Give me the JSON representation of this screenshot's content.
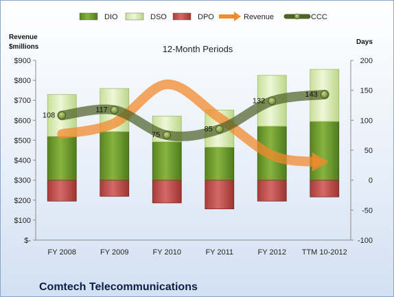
{
  "chart_data": {
    "type": "bar",
    "title": "12-Month Periods",
    "company": "Comtech Telecommunications",
    "categories": [
      "FY 2008",
      "FY 2009",
      "FY 2010",
      "FY 2011",
      "FY 2012",
      "TTM 10-2012"
    ],
    "left_axis": {
      "label_line1": "Revenue",
      "label_line2": "$millions",
      "ylim": [
        0,
        900
      ],
      "ticks": [
        0,
        100,
        200,
        300,
        400,
        500,
        600,
        700,
        800,
        900
      ],
      "tick_labels": [
        "$-",
        "$100",
        "$200",
        "$300",
        "$400",
        "$500",
        "$600",
        "$700",
        "$800",
        "$900"
      ]
    },
    "right_axis": {
      "label": "Days",
      "ylim": [
        -100,
        200
      ],
      "ticks": [
        -100,
        -50,
        0,
        50,
        100,
        150,
        200
      ],
      "tick_labels": [
        "-100",
        "-50",
        "0",
        "50",
        "100",
        "150",
        "200"
      ]
    },
    "legend": [
      "DIO",
      "DSO",
      "DPO",
      "Revenue",
      "CCC"
    ],
    "legend_position": "top",
    "series": [
      {
        "name": "DIO",
        "axis": "right",
        "kind": "stacked-bar",
        "color": "#6e9a2c",
        "values": [
          73,
          81,
          64,
          55,
          90,
          98
        ]
      },
      {
        "name": "DSO",
        "axis": "right",
        "kind": "stacked-bar",
        "color": "#d8eab0",
        "values": [
          70,
          72,
          43,
          62,
          85,
          87
        ]
      },
      {
        "name": "DPO",
        "axis": "right",
        "kind": "negative-bar",
        "color": "#c0504d",
        "values": [
          -35,
          -27,
          -38,
          -48,
          -35,
          -28
        ]
      },
      {
        "name": "Revenue",
        "axis": "left",
        "kind": "line",
        "color": "#f28a2e",
        "values": [
          531,
          586,
          780,
          612,
          425,
          391
        ]
      },
      {
        "name": "CCC",
        "axis": "right",
        "kind": "line",
        "color": "#4f6228",
        "values": [
          108,
          117,
          75,
          85,
          132,
          143
        ]
      }
    ],
    "data_labels": [
      "108",
      "117",
      "75",
      "85",
      "132",
      "143"
    ],
    "grid": false
  }
}
